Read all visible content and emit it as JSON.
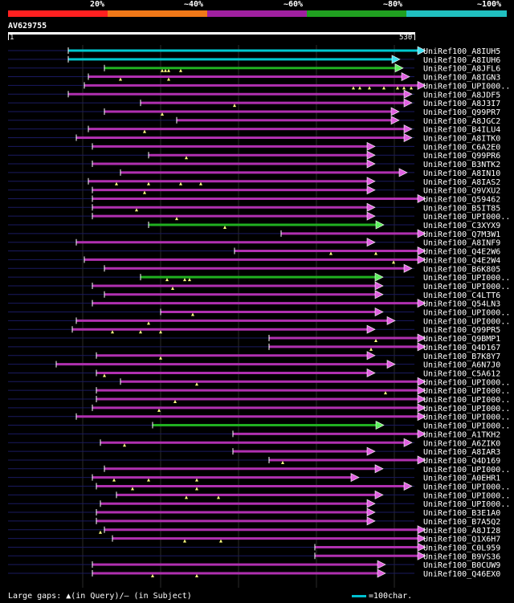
{
  "legend": {
    "segments": [
      {
        "label": "20%",
        "color": "#ff2020"
      },
      {
        "label": "~40%",
        "color": "#f07818"
      },
      {
        "label": "~60%",
        "color": "#a020a0"
      },
      {
        "label": "~80%",
        "color": "#20a020"
      },
      {
        "label": "~100%",
        "color": "#20c0c0"
      }
    ]
  },
  "query": {
    "name": "AV629755",
    "start": "1",
    "end": "530"
  },
  "hits": [
    {
      "name": "UniRef100_A8IUH5",
      "start": 85,
      "end": 530,
      "color": "#00c8d0",
      "gaps": []
    },
    {
      "name": "UniRef100_A8IUH6",
      "start": 85,
      "end": 498,
      "color": "#00c8d0",
      "gaps": []
    },
    {
      "name": "UniRef100_A8JFL6",
      "start": 130,
      "end": 502,
      "color": "#20b020",
      "gaps": [
        202,
        206,
        210,
        225
      ]
    },
    {
      "name": "UniRef100_A8IGN3",
      "start": 110,
      "end": 510,
      "color": "#b030b0",
      "gaps": [
        150,
        210
      ]
    },
    {
      "name": "UniRef100_UPI000..",
      "start": 105,
      "end": 530,
      "color": "#b030b0",
      "gaps": [
        440,
        448,
        460,
        478,
        495,
        503,
        512
      ]
    },
    {
      "name": "UniRef100_A8JDF5",
      "start": 85,
      "end": 513,
      "color": "#b030b0",
      "gaps": []
    },
    {
      "name": "UniRef100_A8J3I7",
      "start": 175,
      "end": 513,
      "color": "#b030b0",
      "gaps": [
        292
      ]
    },
    {
      "name": "UniRef100_Q99PR7",
      "start": 130,
      "end": 497,
      "color": "#b030b0",
      "gaps": [
        202
      ]
    },
    {
      "name": "UniRef100_A8JGC2",
      "start": 220,
      "end": 497,
      "color": "#b030b0",
      "gaps": []
    },
    {
      "name": "UniRef100_B4ILU4",
      "start": 110,
      "end": 513,
      "color": "#b030b0",
      "gaps": [
        180
      ]
    },
    {
      "name": "UniRef100_A8ITK0",
      "start": 95,
      "end": 513,
      "color": "#b030b0",
      "gaps": []
    },
    {
      "name": "UniRef100_C6A2E0",
      "start": 115,
      "end": 467,
      "color": "#b030b0",
      "gaps": []
    },
    {
      "name": "UniRef100_Q99PR6",
      "start": 185,
      "end": 467,
      "color": "#b030b0",
      "gaps": [
        232
      ]
    },
    {
      "name": "UniRef100_B3NTK2",
      "start": 115,
      "end": 467,
      "color": "#b030b0",
      "gaps": []
    },
    {
      "name": "UniRef100_A8IN10",
      "start": 150,
      "end": 507,
      "color": "#b030b0",
      "gaps": []
    },
    {
      "name": "UniRef100_A8IAS2",
      "start": 110,
      "end": 467,
      "color": "#b030b0",
      "gaps": [
        145,
        185,
        225,
        250
      ]
    },
    {
      "name": "UniRef100_Q9VXU2",
      "start": 115,
      "end": 467,
      "color": "#b030b0",
      "gaps": [
        180
      ]
    },
    {
      "name": "UniRef100_Q59462",
      "start": 115,
      "end": 530,
      "color": "#b030b0",
      "gaps": []
    },
    {
      "name": "UniRef100_B5IT85",
      "start": 115,
      "end": 467,
      "color": "#b030b0",
      "gaps": [
        170
      ]
    },
    {
      "name": "UniRef100_UPI000..",
      "start": 115,
      "end": 467,
      "color": "#b030b0",
      "gaps": [
        220
      ]
    },
    {
      "name": "UniRef100_C3XYX9",
      "start": 185,
      "end": 478,
      "color": "#20b020",
      "gaps": [
        280
      ]
    },
    {
      "name": "UniRef100_Q7M3W1",
      "start": 350,
      "end": 530,
      "color": "#b030b0",
      "gaps": []
    },
    {
      "name": "UniRef100_A8INF9",
      "start": 95,
      "end": 467,
      "color": "#b030b0",
      "gaps": []
    },
    {
      "name": "UniRef100_Q4E2W6",
      "start": 292,
      "end": 530,
      "color": "#b030b0",
      "gaps": [
        412,
        468
      ]
    },
    {
      "name": "UniRef100_Q4E2W4",
      "start": 105,
      "end": 530,
      "color": "#b030b0",
      "gaps": [
        490
      ]
    },
    {
      "name": "UniRef100_B6K805",
      "start": 130,
      "end": 513,
      "color": "#b030b0",
      "gaps": []
    },
    {
      "name": "UniRef100_UPI000..",
      "start": 175,
      "end": 477,
      "color": "#20b020",
      "gaps": [
        208,
        230,
        236
      ]
    },
    {
      "name": "UniRef100_UPI000..",
      "start": 115,
      "end": 477,
      "color": "#b030b0",
      "gaps": [
        215
      ]
    },
    {
      "name": "UniRef100_C4LTT6",
      "start": 130,
      "end": 477,
      "color": "#b030b0",
      "gaps": []
    },
    {
      "name": "UniRef100_Q54LN3",
      "start": 115,
      "end": 530,
      "color": "#b030b0",
      "gaps": []
    },
    {
      "name": "UniRef100_UPI000..",
      "start": 200,
      "end": 477,
      "color": "#b030b0",
      "gaps": [
        240
      ]
    },
    {
      "name": "UniRef100_UPI000..",
      "start": 95,
      "end": 492,
      "color": "#b030b0",
      "gaps": [
        185
      ]
    },
    {
      "name": "UniRef100_Q99PR5",
      "start": 90,
      "end": 467,
      "color": "#b030b0",
      "gaps": [
        140,
        175,
        200
      ]
    },
    {
      "name": "UniRef100_Q9BMP1",
      "start": 335,
      "end": 530,
      "color": "#b030b0",
      "gaps": [
        468
      ]
    },
    {
      "name": "UniRef100_Q4D167",
      "start": 335,
      "end": 530,
      "color": "#b030b0",
      "gaps": [
        462
      ]
    },
    {
      "name": "UniRef100_B7K8Y7",
      "start": 120,
      "end": 467,
      "color": "#b030b0",
      "gaps": [
        200
      ]
    },
    {
      "name": "UniRef100_A6N7J0",
      "start": 70,
      "end": 492,
      "color": "#b030b0",
      "gaps": []
    },
    {
      "name": "UniRef100_C5A612",
      "start": 120,
      "end": 467,
      "color": "#b030b0",
      "gaps": [
        130
      ]
    },
    {
      "name": "UniRef100_UPI000..",
      "start": 150,
      "end": 530,
      "color": "#b030b0",
      "gaps": [
        245
      ]
    },
    {
      "name": "UniRef100_UPI000..",
      "start": 120,
      "end": 530,
      "color": "#b030b0",
      "gaps": [
        480
      ]
    },
    {
      "name": "UniRef100_UPI000..",
      "start": 120,
      "end": 530,
      "color": "#b030b0",
      "gaps": [
        218
      ]
    },
    {
      "name": "UniRef100_UPI000..",
      "start": 115,
      "end": 530,
      "color": "#b030b0",
      "gaps": [
        198
      ]
    },
    {
      "name": "UniRef100_UPI000..",
      "start": 95,
      "end": 530,
      "color": "#b030b0",
      "gaps": []
    },
    {
      "name": "UniRef100_UPI000..",
      "start": 190,
      "end": 478,
      "color": "#20b020",
      "gaps": []
    },
    {
      "name": "UniRef100_A1TKH2",
      "start": 290,
      "end": 530,
      "color": "#b030b0",
      "gaps": []
    },
    {
      "name": "UniRef100_A6ZIK0",
      "start": 125,
      "end": 513,
      "color": "#b030b0",
      "gaps": [
        155
      ]
    },
    {
      "name": "UniRef100_A8IAR3",
      "start": 290,
      "end": 467,
      "color": "#b030b0",
      "gaps": []
    },
    {
      "name": "UniRef100_Q4D169",
      "start": 335,
      "end": 530,
      "color": "#b030b0",
      "gaps": [
        352
      ]
    },
    {
      "name": "UniRef100_UPI000..",
      "start": 130,
      "end": 477,
      "color": "#b030b0",
      "gaps": []
    },
    {
      "name": "UniRef100_A0EHR1",
      "start": 115,
      "end": 447,
      "color": "#b030b0",
      "gaps": [
        142,
        185,
        245
      ]
    },
    {
      "name": "UniRef100_UPI000..",
      "start": 120,
      "end": 513,
      "color": "#b030b0",
      "gaps": [
        165,
        245
      ]
    },
    {
      "name": "UniRef100_UPI000..",
      "start": 145,
      "end": 477,
      "color": "#b030b0",
      "gaps": [
        232,
        272
      ]
    },
    {
      "name": "UniRef100_UPI000..",
      "start": 125,
      "end": 467,
      "color": "#b030b0",
      "gaps": []
    },
    {
      "name": "UniRef100_B3E1A0",
      "start": 120,
      "end": 467,
      "color": "#b030b0",
      "gaps": []
    },
    {
      "name": "UniRef100_B7A5Q2",
      "start": 120,
      "end": 467,
      "color": "#b030b0",
      "gaps": []
    },
    {
      "name": "UniRef100_A8JI28",
      "start": 130,
      "end": 530,
      "color": "#b030b0",
      "gaps": [
        125
      ]
    },
    {
      "name": "UniRef100_Q1X6H7",
      "start": 140,
      "end": 530,
      "color": "#b030b0",
      "gaps": [
        230,
        275
      ]
    },
    {
      "name": "UniRef100_C0L959",
      "start": 392,
      "end": 530,
      "color": "#b030b0",
      "gaps": []
    },
    {
      "name": "UniRef100_B9VS36",
      "start": 392,
      "end": 530,
      "color": "#b030b0",
      "gaps": []
    },
    {
      "name": "UniRef100_B0CUW9",
      "start": 115,
      "end": 480,
      "color": "#b030b0",
      "gaps": []
    },
    {
      "name": "UniRef100_Q46EX0",
      "start": 115,
      "end": 480,
      "color": "#b030b0",
      "gaps": [
        190,
        245
      ]
    }
  ],
  "footer": {
    "text": "Large gaps: ▲(in Query)/– (in Subject)",
    "scale_label": "=100char."
  }
}
